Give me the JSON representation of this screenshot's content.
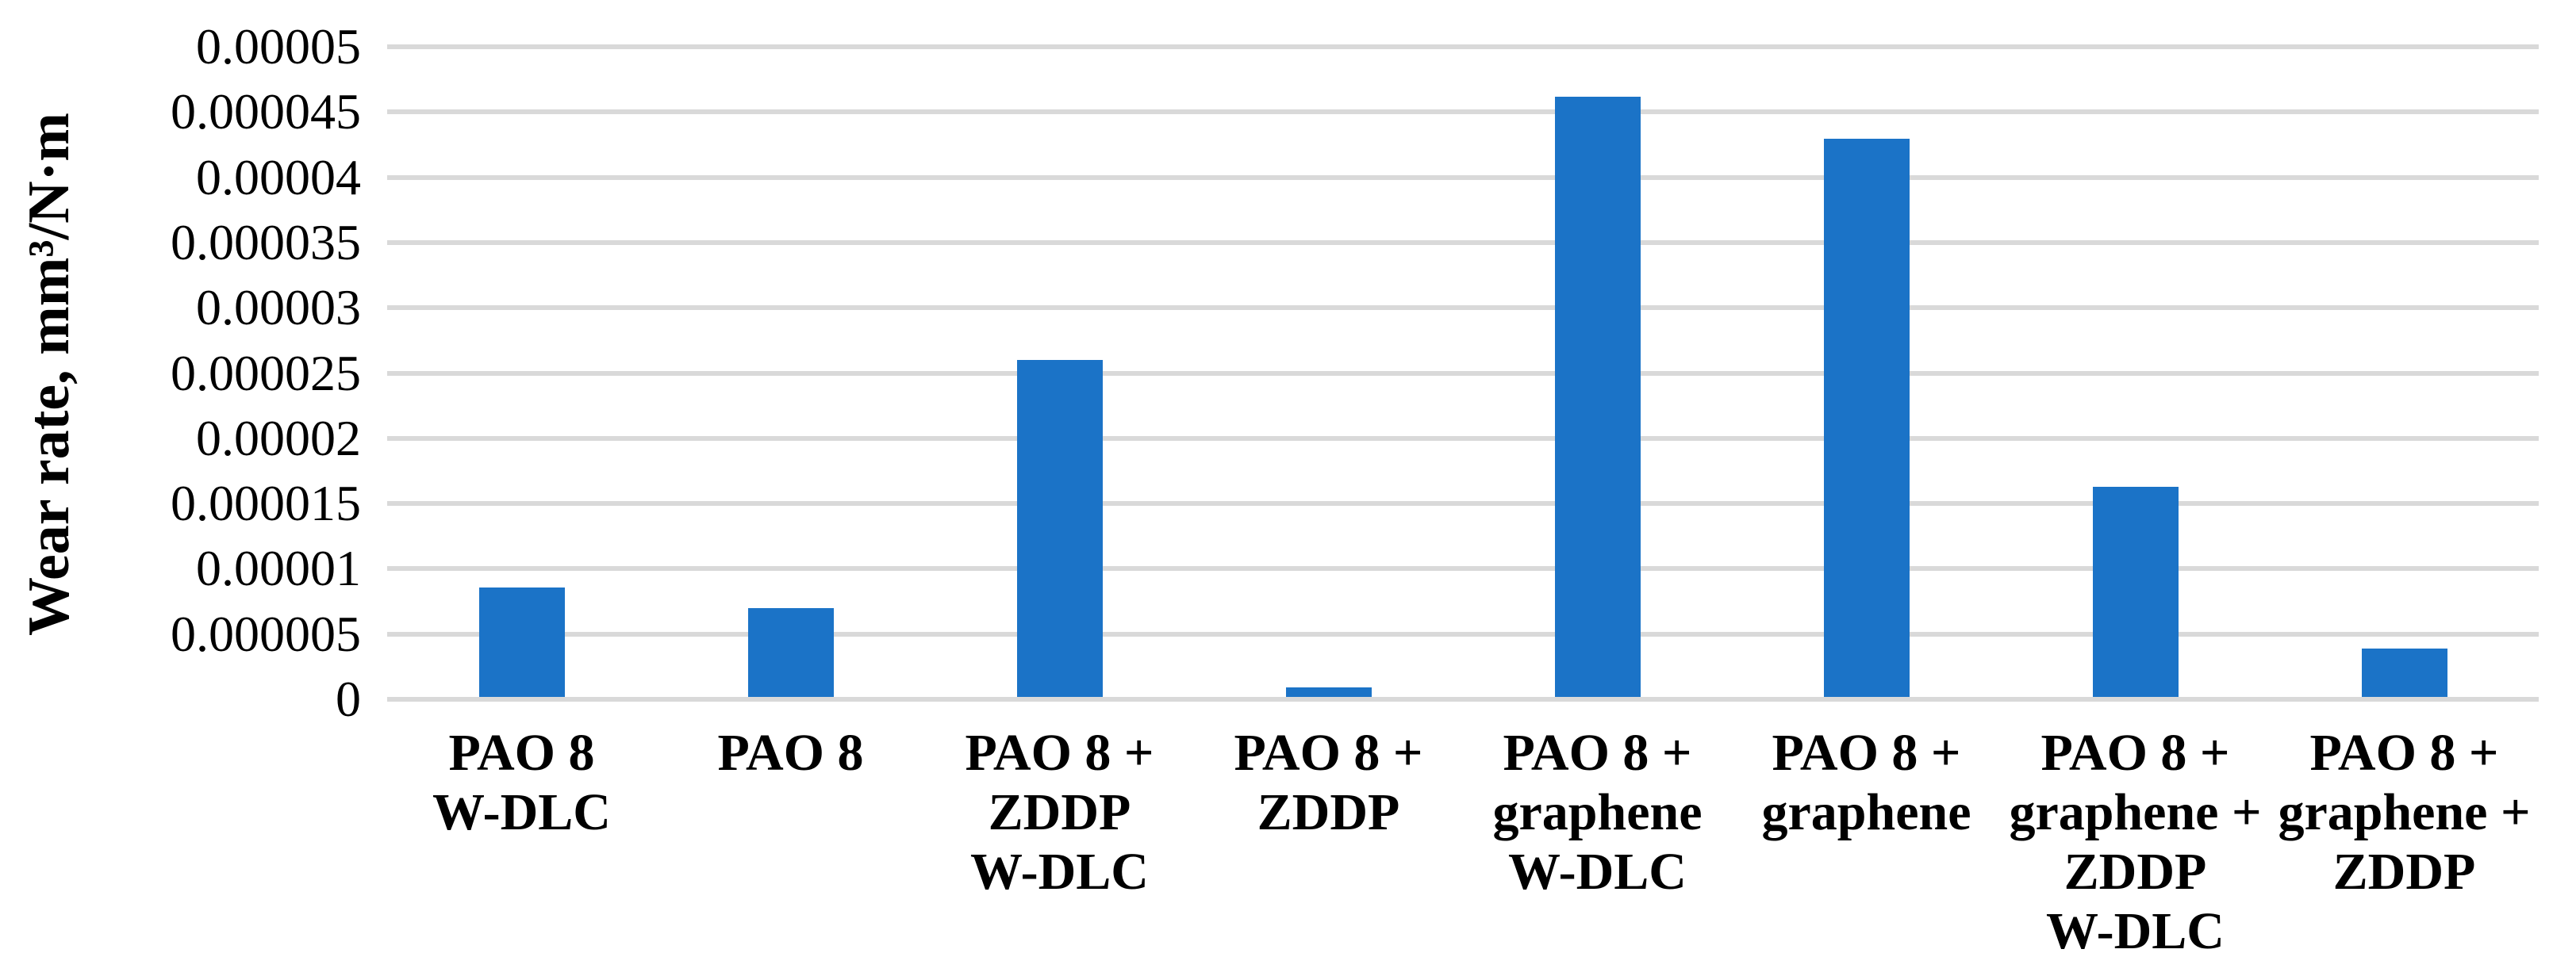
{
  "chart_data": {
    "type": "bar",
    "title": "",
    "xlabel": "",
    "ylabel": "Wear rate, mm³/N·m",
    "categories": [
      "PAO 8\nW-DLC",
      "PAO 8",
      "PAO 8 +\nZDDP\nW-DLC",
      "PAO 8 +\nZDDP",
      "PAO 8 +\ngraphene\nW-DLC",
      "PAO 8 +\ngraphene",
      "PAO 8 +\ngraphene +\nZDDP\nW-DLC",
      "PAO 8 +\ngraphene +\nZDDP"
    ],
    "values": [
      8.4e-06,
      6.8e-06,
      2.58e-05,
      7e-07,
      4.6e-05,
      4.28e-05,
      1.61e-05,
      3.7e-06
    ],
    "ylim": [
      0,
      5e-05
    ],
    "ytick_step": 5e-06,
    "yticks_bottom_to_top": [
      "0",
      "0.000005",
      "0.00001",
      "0.000015",
      "0.00002",
      "0.000025",
      "0.00003",
      "0.000035",
      "0.00004",
      "0.000045",
      "0.00005"
    ],
    "grid": true,
    "legend": "none",
    "bar_color": "#1b73c7",
    "gridline_color": "#d9d9d9",
    "text_color": "#000000"
  }
}
